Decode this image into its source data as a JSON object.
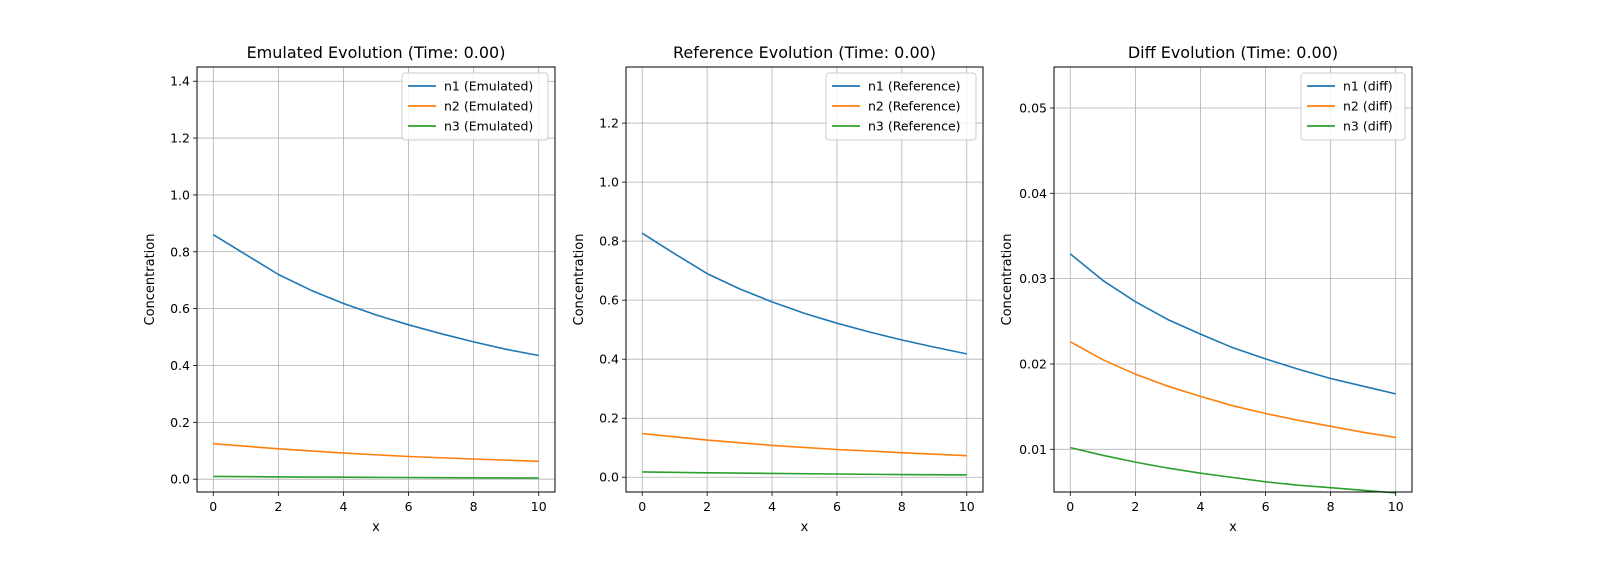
{
  "colors": {
    "n1": "#1f77b4",
    "n2": "#ff7f0e",
    "n3": "#2ca02c",
    "grid": "#b0b0b0",
    "legend_border": "#cccccc"
  },
  "chart_data": [
    {
      "type": "line",
      "title": "Emulated Evolution (Time: 0.00)",
      "xlabel": "x",
      "ylabel": "Concentration",
      "xlim": [
        -0.5,
        10.5
      ],
      "ylim": [
        -0.045,
        1.45
      ],
      "xticks": [
        0,
        2,
        4,
        6,
        8,
        10
      ],
      "yticks": [
        0.0,
        0.2,
        0.4,
        0.6,
        0.8,
        1.0,
        1.2,
        1.4
      ],
      "ytick_labels": [
        "0.0",
        "0.2",
        "0.4",
        "0.6",
        "0.8",
        "1.0",
        "1.2",
        "1.4"
      ],
      "grid": true,
      "legend_position": "top-right",
      "series": [
        {
          "name": "n1 (Emulated)",
          "color": "n1",
          "x": [
            0,
            1,
            2,
            3,
            4,
            5,
            6,
            7,
            8,
            9,
            10
          ],
          "values": [
            0.86,
            0.79,
            0.72,
            0.665,
            0.618,
            0.578,
            0.543,
            0.512,
            0.483,
            0.457,
            0.435
          ]
        },
        {
          "name": "n2 (Emulated)",
          "color": "n2",
          "x": [
            0,
            2,
            4,
            6,
            8,
            10
          ],
          "values": [
            0.125,
            0.107,
            0.092,
            0.08,
            0.071,
            0.063
          ]
        },
        {
          "name": "n3 (Emulated)",
          "color": "n3",
          "x": [
            0,
            2,
            4,
            6,
            8,
            10
          ],
          "values": [
            0.01,
            0.008,
            0.007,
            0.006,
            0.005,
            0.004
          ]
        }
      ]
    },
    {
      "type": "line",
      "title": "Reference Evolution (Time: 0.00)",
      "xlabel": "x",
      "ylabel": "Concentration",
      "xlim": [
        -0.5,
        10.5
      ],
      "ylim": [
        -0.05,
        1.39
      ],
      "xticks": [
        0,
        2,
        4,
        6,
        8,
        10
      ],
      "yticks": [
        0.0,
        0.2,
        0.4,
        0.6,
        0.8,
        1.0,
        1.2
      ],
      "ytick_labels": [
        "0.0",
        "0.2",
        "0.4",
        "0.6",
        "0.8",
        "1.0",
        "1.2"
      ],
      "grid": true,
      "legend_position": "top-right",
      "series": [
        {
          "name": "n1 (Reference)",
          "color": "n1",
          "x": [
            0,
            1,
            2,
            3,
            4,
            5,
            6,
            7,
            8,
            9,
            10
          ],
          "values": [
            0.827,
            0.757,
            0.69,
            0.638,
            0.594,
            0.555,
            0.522,
            0.492,
            0.465,
            0.441,
            0.418
          ]
        },
        {
          "name": "n2 (Reference)",
          "color": "n2",
          "x": [
            0,
            2,
            4,
            6,
            8,
            10
          ],
          "values": [
            0.148,
            0.126,
            0.108,
            0.094,
            0.083,
            0.073
          ]
        },
        {
          "name": "n3 (Reference)",
          "color": "n3",
          "x": [
            0,
            2,
            4,
            6,
            8,
            10
          ],
          "values": [
            0.018,
            0.015,
            0.013,
            0.011,
            0.009,
            0.008
          ]
        }
      ]
    },
    {
      "type": "line",
      "title": "Diff Evolution (Time: 0.00)",
      "xlabel": "x",
      "ylabel": "Concentration",
      "xlim": [
        -0.5,
        10.5
      ],
      "ylim": [
        0.005,
        0.0548
      ],
      "xticks": [
        0,
        2,
        4,
        6,
        8,
        10
      ],
      "yticks": [
        0.01,
        0.02,
        0.03,
        0.04,
        0.05
      ],
      "ytick_labels": [
        "0.01",
        "0.02",
        "0.03",
        "0.04",
        "0.05"
      ],
      "grid": true,
      "legend_position": "top-right",
      "series": [
        {
          "name": "n1 (diff)",
          "color": "n1",
          "x": [
            0,
            1,
            2,
            3,
            4,
            5,
            6,
            7,
            8,
            9,
            10
          ],
          "values": [
            0.0329,
            0.0298,
            0.0273,
            0.0252,
            0.0235,
            0.0219,
            0.0206,
            0.0194,
            0.0183,
            0.0174,
            0.0165
          ]
        },
        {
          "name": "n2 (diff)",
          "color": "n2",
          "x": [
            0,
            1,
            2,
            3,
            4,
            5,
            6,
            7,
            8,
            9,
            10
          ],
          "values": [
            0.0226,
            0.0205,
            0.0188,
            0.0174,
            0.0162,
            0.0151,
            0.0142,
            0.0134,
            0.0127,
            0.012,
            0.0114
          ]
        },
        {
          "name": "n3 (diff)",
          "color": "n3",
          "x": [
            0,
            1,
            2,
            3,
            4,
            5,
            6,
            7,
            8,
            9,
            10
          ],
          "values": [
            0.0102,
            0.0093,
            0.0085,
            0.0078,
            0.0072,
            0.0067,
            0.0062,
            0.0058,
            0.0055,
            0.0052,
            0.0049
          ]
        }
      ]
    }
  ]
}
